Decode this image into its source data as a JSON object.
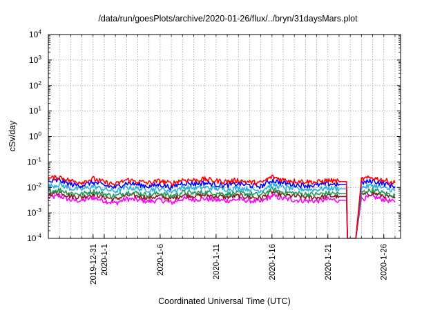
{
  "chart_data": {
    "type": "line",
    "title": "/data/run/goesPlots/archive/2020-01-26/flux/../bryn/31daysMars.plot",
    "xlabel": "Coordinated Universal Time (UTC)",
    "ylabel": "cSv/day",
    "yscale": "log",
    "ylim": [
      0.0001,
      10000
    ],
    "xlim": [
      "2019-12-27",
      "2020-01-27T12:00"
    ],
    "grid": true,
    "y_ticks": [
      {
        "base": "10",
        "exp": "-4"
      },
      {
        "base": "10",
        "exp": "-3"
      },
      {
        "base": "10",
        "exp": "-2"
      },
      {
        "base": "10",
        "exp": "-1"
      },
      {
        "base": "10",
        "exp": "0"
      },
      {
        "base": "10",
        "exp": "1"
      },
      {
        "base": "10",
        "exp": "2"
      },
      {
        "base": "10",
        "exp": "3"
      },
      {
        "base": "10",
        "exp": "4"
      }
    ],
    "x_ticks": [
      {
        "date": "2019-12-31",
        "label": "2019-12-31"
      },
      {
        "date": "2020-01-01",
        "label": "2020-1-1"
      },
      {
        "date": "2020-01-06",
        "label": "2020-1-6"
      },
      {
        "date": "2020-01-11",
        "label": "2020-1-11"
      },
      {
        "date": "2020-01-16",
        "label": "2020-1-16"
      },
      {
        "date": "2020-01-21",
        "label": "2020-1-21"
      },
      {
        "date": "2020-01-26",
        "label": "2020-1-26"
      }
    ],
    "x": [
      "2019-12-27",
      "2019-12-28",
      "2019-12-29",
      "2019-12-30",
      "2019-12-31",
      "2020-01-01",
      "2020-01-02",
      "2020-01-03",
      "2020-01-04",
      "2020-01-05",
      "2020-01-06",
      "2020-01-07",
      "2020-01-08",
      "2020-01-09",
      "2020-01-10",
      "2020-01-11",
      "2020-01-12",
      "2020-01-13",
      "2020-01-14",
      "2020-01-15",
      "2020-01-16",
      "2020-01-17",
      "2020-01-18",
      "2020-01-19",
      "2020-01-20",
      "2020-01-21",
      "2020-01-22",
      "2020-01-23",
      "2020-01-24",
      "2020-01-25",
      "2020-01-26",
      "2020-01-27"
    ],
    "series": [
      {
        "color": "#ff0000",
        "values": [
          0.022,
          0.026,
          0.018,
          0.016,
          0.022,
          0.016,
          0.013,
          0.02,
          0.017,
          0.015,
          0.018,
          0.014,
          0.02,
          0.019,
          0.021,
          0.018,
          0.017,
          0.019,
          0.016,
          0.015,
          0.026,
          0.02,
          0.018,
          0.017,
          0.016,
          0.019,
          0.017,
          0.0001,
          0.021,
          0.024,
          0.019,
          0.015
        ]
      },
      {
        "color": "#0000ff",
        "values": [
          0.016,
          0.019,
          0.013,
          0.012,
          0.016,
          0.012,
          0.01,
          0.015,
          0.013,
          0.011,
          0.013,
          0.01,
          0.015,
          0.014,
          0.015,
          0.013,
          0.012,
          0.014,
          0.012,
          0.011,
          0.019,
          0.015,
          0.013,
          0.012,
          0.012,
          0.014,
          0.013,
          0.0001,
          0.015,
          0.018,
          0.014,
          0.011
        ]
      },
      {
        "color": "#2bb0e0",
        "values": [
          0.011,
          0.013,
          0.009,
          0.0085,
          0.011,
          0.0085,
          0.007,
          0.01,
          0.009,
          0.008,
          0.009,
          0.007,
          0.01,
          0.0095,
          0.01,
          0.009,
          0.0085,
          0.0095,
          0.0085,
          0.0075,
          0.013,
          0.01,
          0.009,
          0.0085,
          0.0082,
          0.0095,
          0.0088,
          0.0001,
          0.01,
          0.012,
          0.0095,
          0.0075
        ]
      },
      {
        "color": "#1e9b5a",
        "values": [
          0.007,
          0.008,
          0.006,
          0.0055,
          0.007,
          0.0055,
          0.0045,
          0.0065,
          0.006,
          0.005,
          0.006,
          0.0045,
          0.0065,
          0.006,
          0.0065,
          0.006,
          0.0055,
          0.006,
          0.0055,
          0.005,
          0.0085,
          0.0065,
          0.006,
          0.0055,
          0.0053,
          0.006,
          0.0057,
          0.0001,
          0.0065,
          0.0078,
          0.006,
          0.0048
        ]
      },
      {
        "color": "#8b1a1a",
        "values": [
          0.0055,
          0.0065,
          0.0045,
          0.0042,
          0.0055,
          0.0042,
          0.0034,
          0.005,
          0.0045,
          0.004,
          0.0045,
          0.0035,
          0.005,
          0.0047,
          0.005,
          0.0045,
          0.0042,
          0.0047,
          0.0042,
          0.0038,
          0.0065,
          0.005,
          0.0045,
          0.0042,
          0.004,
          0.0047,
          0.0044,
          0.0001,
          0.005,
          0.006,
          0.0047,
          0.0037
        ]
      },
      {
        "color": "#ff00ff",
        "values": [
          0.004,
          0.0046,
          0.0032,
          0.003,
          0.004,
          0.003,
          0.0024,
          0.0036,
          0.0032,
          0.0028,
          0.0032,
          0.0025,
          0.0036,
          0.0034,
          0.0036,
          0.0032,
          0.003,
          0.0034,
          0.003,
          0.0027,
          0.0047,
          0.0036,
          0.0032,
          0.003,
          0.0029,
          0.0034,
          0.0031,
          0.0001,
          0.0036,
          0.0043,
          0.0034,
          0.0026
        ]
      }
    ]
  }
}
